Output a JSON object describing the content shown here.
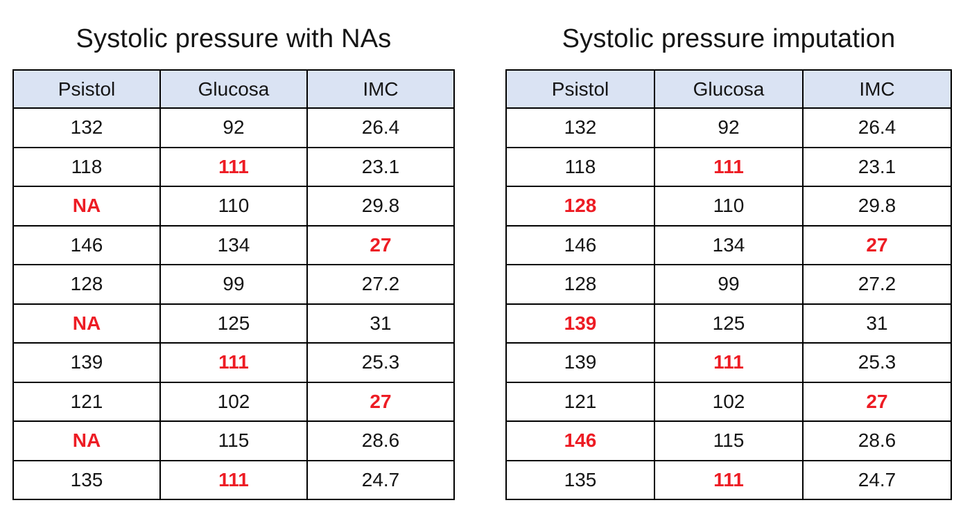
{
  "colors": {
    "header_bg": "#DAE3F3",
    "highlight_red": "#ED1C24",
    "text": "#151515",
    "border": "#000000"
  },
  "chart_data": [
    {
      "type": "table",
      "title": "Systolic pressure with NAs",
      "headers": [
        "Psistol",
        "Glucosa",
        "IMC"
      ],
      "rows": [
        [
          {
            "v": "132"
          },
          {
            "v": "92"
          },
          {
            "v": "26.4"
          }
        ],
        [
          {
            "v": "118"
          },
          {
            "v": "111",
            "red": true
          },
          {
            "v": "23.1"
          }
        ],
        [
          {
            "v": "NA",
            "red": true
          },
          {
            "v": "110"
          },
          {
            "v": "29.8"
          }
        ],
        [
          {
            "v": "146"
          },
          {
            "v": "134"
          },
          {
            "v": "27",
            "red": true
          }
        ],
        [
          {
            "v": "128"
          },
          {
            "v": "99"
          },
          {
            "v": "27.2"
          }
        ],
        [
          {
            "v": "NA",
            "red": true
          },
          {
            "v": "125"
          },
          {
            "v": "31"
          }
        ],
        [
          {
            "v": "139"
          },
          {
            "v": "111",
            "red": true
          },
          {
            "v": "25.3"
          }
        ],
        [
          {
            "v": "121"
          },
          {
            "v": "102"
          },
          {
            "v": "27",
            "red": true
          }
        ],
        [
          {
            "v": "NA",
            "red": true
          },
          {
            "v": "115"
          },
          {
            "v": "28.6"
          }
        ],
        [
          {
            "v": "135"
          },
          {
            "v": "111",
            "red": true
          },
          {
            "v": "24.7"
          }
        ]
      ]
    },
    {
      "type": "table",
      "title": "Systolic pressure imputation",
      "headers": [
        "Psistol",
        "Glucosa",
        "IMC"
      ],
      "rows": [
        [
          {
            "v": "132"
          },
          {
            "v": "92"
          },
          {
            "v": "26.4"
          }
        ],
        [
          {
            "v": "118"
          },
          {
            "v": "111",
            "red": true
          },
          {
            "v": "23.1"
          }
        ],
        [
          {
            "v": "128",
            "red": true
          },
          {
            "v": "110"
          },
          {
            "v": "29.8"
          }
        ],
        [
          {
            "v": "146"
          },
          {
            "v": "134"
          },
          {
            "v": "27",
            "red": true
          }
        ],
        [
          {
            "v": "128"
          },
          {
            "v": "99"
          },
          {
            "v": "27.2"
          }
        ],
        [
          {
            "v": "139",
            "red": true
          },
          {
            "v": "125"
          },
          {
            "v": "31"
          }
        ],
        [
          {
            "v": "139"
          },
          {
            "v": "111",
            "red": true
          },
          {
            "v": "25.3"
          }
        ],
        [
          {
            "v": "121"
          },
          {
            "v": "102"
          },
          {
            "v": "27",
            "red": true
          }
        ],
        [
          {
            "v": "146",
            "red": true
          },
          {
            "v": "115"
          },
          {
            "v": "28.6"
          }
        ],
        [
          {
            "v": "135"
          },
          {
            "v": "111",
            "red": true
          },
          {
            "v": "24.7"
          }
        ]
      ]
    }
  ]
}
